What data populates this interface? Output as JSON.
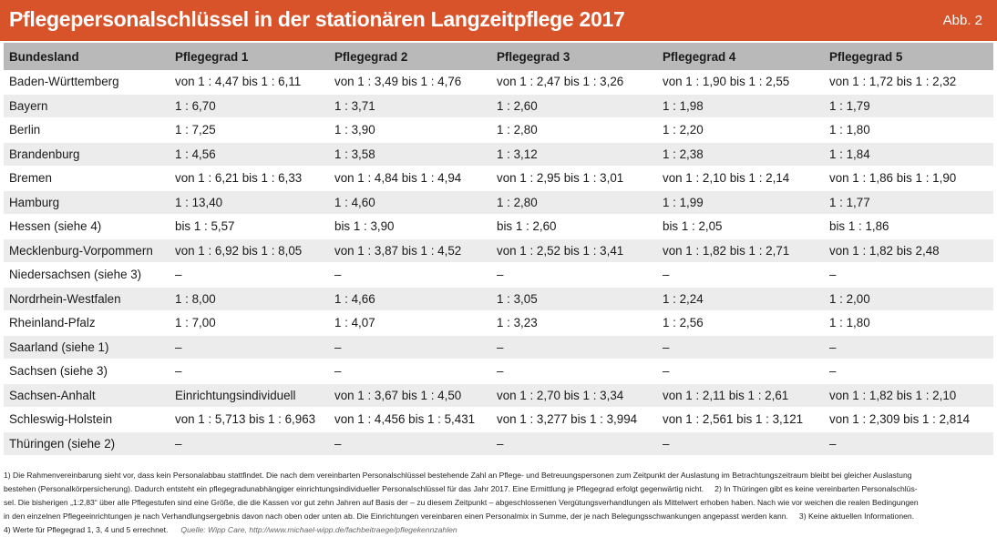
{
  "header": {
    "title": "Pflegepersonalschlüssel in der stationären Langzeitpflege 2017",
    "figure_label": "Abb. 2"
  },
  "table": {
    "columns": [
      "Bundesland",
      "Pflegegrad 1",
      "Pflegegrad 2",
      "Pflegegrad 3",
      "Pflegegrad 4",
      "Pflegegrad 5"
    ],
    "rows": [
      [
        "Baden-Württemberg",
        "von 1 : 4,47 bis 1 : 6,11",
        "von 1 : 3,49 bis 1 : 4,76",
        "von 1 : 2,47 bis 1 : 3,26",
        "von 1 : 1,90 bis 1 : 2,55",
        "von 1 : 1,72 bis 1 : 2,32"
      ],
      [
        "Bayern",
        "1 : 6,70",
        "1 : 3,71",
        "1 : 2,60",
        "1 : 1,98",
        "1 : 1,79"
      ],
      [
        "Berlin",
        "1 : 7,25",
        "1 : 3,90",
        "1 : 2,80",
        "1 : 2,20",
        "1 : 1,80"
      ],
      [
        "Brandenburg",
        "1 : 4,56",
        "1 : 3,58",
        "1 : 3,12",
        "1 : 2,38",
        "1 : 1,84"
      ],
      [
        "Bremen",
        "von 1 : 6,21 bis 1 : 6,33",
        "von 1 : 4,84 bis 1 : 4,94",
        "von 1 : 2,95 bis 1 : 3,01",
        "von 1 : 2,10 bis 1 : 2,14",
        "von 1 : 1,86 bis 1 : 1,90"
      ],
      [
        "Hamburg",
        "1 : 13,40",
        "1 : 4,60",
        "1 : 2,80",
        "1 : 1,99",
        "1 : 1,77"
      ],
      [
        "Hessen (siehe 4)",
        "bis 1 : 5,57",
        "bis 1 : 3,90",
        "bis 1 : 2,60",
        "bis 1 : 2,05",
        "bis 1 : 1,86"
      ],
      [
        "Mecklenburg-Vorpommern",
        "von 1 : 6,92 bis 1 : 8,05",
        "von 1 : 3,87 bis 1 : 4,52",
        "von 1 : 2,52 bis 1 : 3,41",
        "von 1 : 1,82 bis 1 : 2,71",
        "von 1 : 1,82 bis 2,48"
      ],
      [
        "Niedersachsen (siehe 3)",
        "–",
        "–",
        "–",
        "–",
        "–"
      ],
      [
        "Nordrhein-Westfalen",
        "1 : 8,00",
        "1 : 4,66",
        "1 : 3,05",
        "1 : 2,24",
        "1 : 2,00"
      ],
      [
        "Rheinland-Pfalz",
        "1 : 7,00",
        "1 : 4,07",
        "1 : 3,23",
        "1 : 2,56",
        "1 : 1,80"
      ],
      [
        "Saarland (siehe 1)",
        "–",
        "–",
        "–",
        "–",
        "–"
      ],
      [
        "Sachsen (siehe 3)",
        "–",
        "–",
        "–",
        "–",
        "–"
      ],
      [
        "Sachsen-Anhalt",
        "Einrichtungsindividuell",
        "von 1 : 3,67 bis 1 : 4,50",
        "von 1 : 2,70 bis 1 : 3,34",
        "von 1 : 2,11 bis 1 : 2,61",
        "von 1 : 1,82 bis 1 : 2,10"
      ],
      [
        "Schleswig-Holstein",
        "von 1 : 5,713 bis 1 : 6,963",
        "von 1 : 4,456 bis 1 : 5,431",
        "von 1 : 3,277 bis 1 : 3,994",
        "von 1 : 2,561 bis 1 : 3,121",
        "von 1 : 2,309 bis 1 : 2,814"
      ],
      [
        "Thüringen (siehe 2)",
        "–",
        "–",
        "–",
        "–",
        "–"
      ]
    ]
  },
  "footnotes": {
    "line1": "1) Die Rahmenvereinbarung sieht vor, dass kein Personalabbau stattfindet. Die nach dem vereinbarten Personalschlüssel bestehende Zahl an Pflege- und Betreuungspersonen zum Zeitpunkt der Auslastung im Betrachtungszeitraum bleibt bei gleicher Auslastung",
    "line2a": "bestehen (Personalkörpersicherung). Dadurch entsteht ein pflegegradunabhängiger einrichtungsindividueller Personalschlüssel für das Jahr 2017. Eine Ermittlung je Pflegegrad erfolgt gegenwärtig nicht.",
    "line2b": "2) In Thüringen gibt es keine vereinbarten Personalschlüs-",
    "line3": "sel. Die bisherigen „1:2,83“ über alle Pflegestufen sind eine Größe, die die Kassen vor gut zehn Jahren auf Basis der – zu diesem Zeitpunkt – abgeschlossenen Vergütungsverhandlungen als Mittelwert erhoben haben. Nach wie vor weichen die realen Bedingungen",
    "line4a": "in den einzelnen Pflegeeinrichtungen je nach Verhandlungsergebnis davon nach oben oder unten ab. Die Einrichtungen vereinbaren einen Personalmix in Summe, der je nach Belegungsschwankungen angepasst werden kann.",
    "line4b": "3) Keine aktuellen Informationen.",
    "line5": "4) Werte für Pflegegrad 1, 3, 4 und 5 errechnet.",
    "source": "Quelle: Wipp Care, http://www.michael-wipp.de/fachbeitraege/pflegekennzahlen"
  }
}
